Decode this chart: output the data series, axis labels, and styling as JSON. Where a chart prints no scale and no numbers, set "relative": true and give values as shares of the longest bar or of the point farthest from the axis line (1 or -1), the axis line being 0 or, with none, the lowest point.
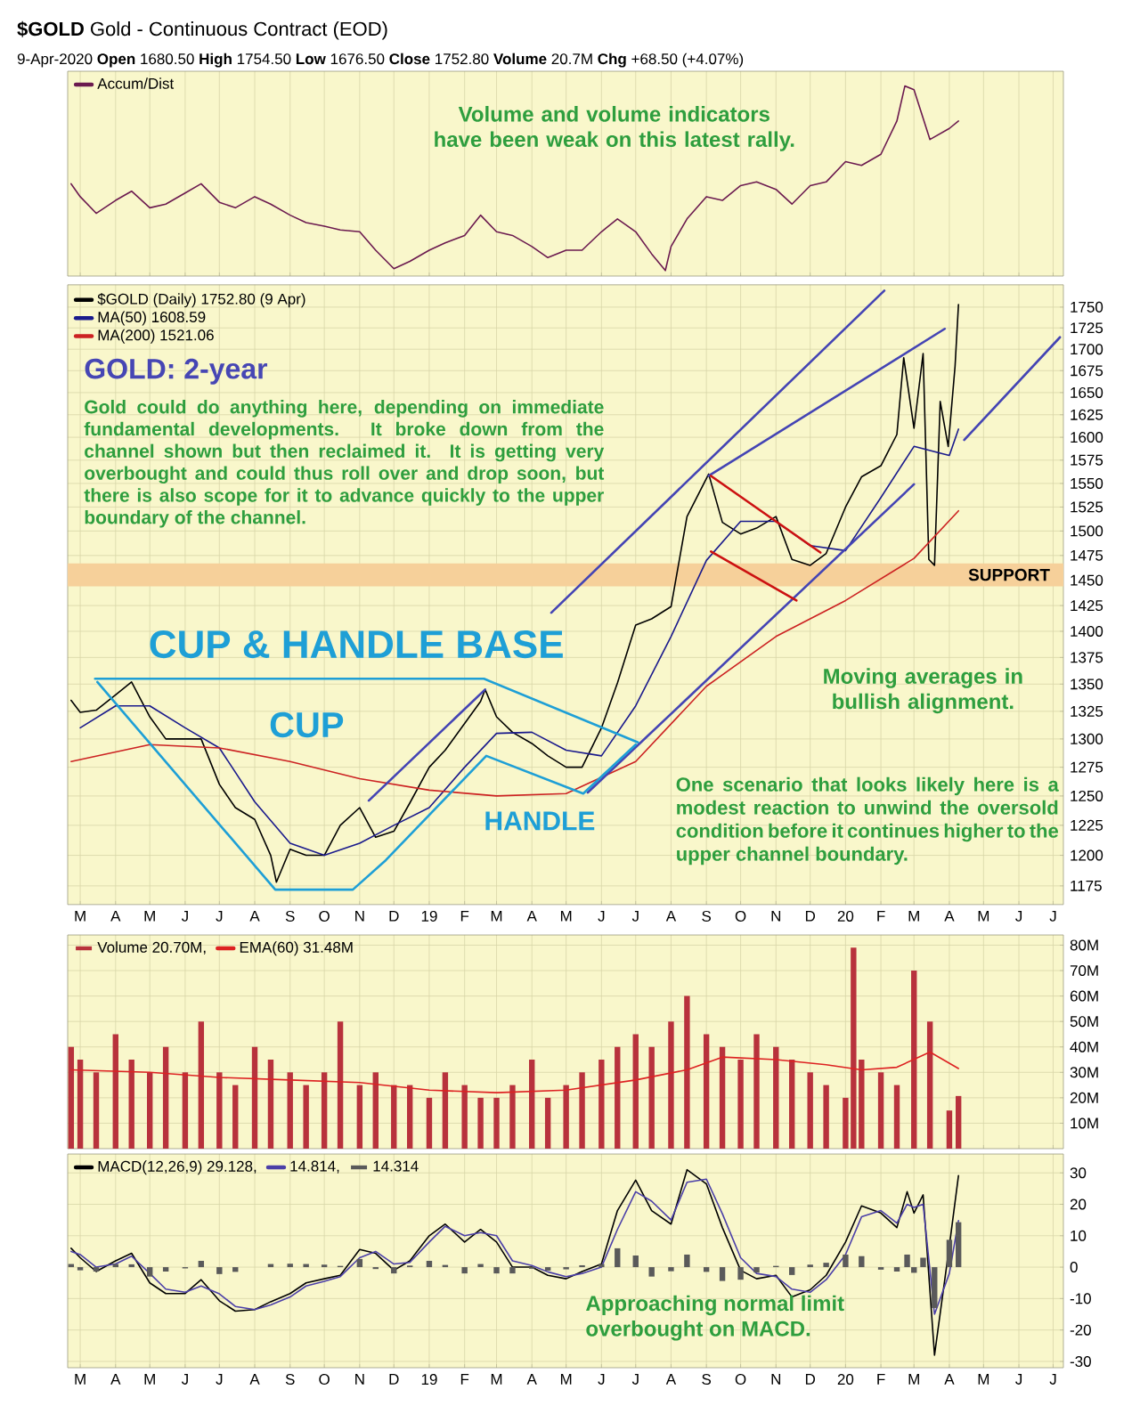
{
  "chart_data": [
    {
      "type": "line",
      "title": "**$GOLD** Gold - Continuous Contract (EOD)",
      "subtitle": "9-Apr-2020 **Open** 1680.50 **High** 1754.50 **Low** 1676.50 **Close** 1752.80 **Volume** 20.7M **Chg** +68.50 (+4.07%)",
      "relative": true,
      "tick_labels": false,
      "grid": "x",
      "legend": "top left",
      "xlim": [
        "2018-02-18",
        "2020-07-10"
      ],
      "xticks": [
        {
          "value": "2018-03-01",
          "label": null
        },
        {
          "value": "2018-04-01",
          "label": null
        },
        {
          "value": "2018-05-01",
          "label": null
        },
        {
          "value": "2018-06-01",
          "label": null
        },
        {
          "value": "2018-07-01",
          "label": null
        },
        {
          "value": "2018-08-01",
          "label": null
        },
        {
          "value": "2018-09-01",
          "label": null
        },
        {
          "value": "2018-10-01",
          "label": null
        },
        {
          "value": "2018-11-01",
          "label": null
        },
        {
          "value": "2018-12-01",
          "label": null
        },
        {
          "value": "2019-01-01",
          "label": null
        },
        {
          "value": "2019-02-01",
          "label": null
        },
        {
          "value": "2019-03-01",
          "label": null
        },
        {
          "value": "2019-04-01",
          "label": null
        },
        {
          "value": "2019-05-01",
          "label": null
        },
        {
          "value": "2019-06-01",
          "label": null
        },
        {
          "value": "2019-07-01",
          "label": null
        },
        {
          "value": "2019-08-01",
          "label": null
        },
        {
          "value": "2019-09-01",
          "label": null
        },
        {
          "value": "2019-10-01",
          "label": null
        },
        {
          "value": "2019-11-01",
          "label": null
        },
        {
          "value": "2019-12-01",
          "label": null
        },
        {
          "value": "2020-01-01",
          "label": null
        },
        {
          "value": "2020-02-01",
          "label": null
        },
        {
          "value": "2020-03-01",
          "label": null
        },
        {
          "value": "2020-04-01",
          "label": null
        },
        {
          "value": "2020-05-01",
          "label": null
        },
        {
          "value": "2020-06-01",
          "label": null
        },
        {
          "value": "2020-07-01",
          "label": null
        }
      ],
      "series": [
        {
          "name": "Accum/Dist",
          "color": "#6b1a4f",
          "x": [
            "2018-02-21",
            "2018-03-01",
            "2018-03-15",
            "2018-04-01",
            "2018-04-15",
            "2018-05-01",
            "2018-05-15",
            "2018-06-01",
            "2018-06-15",
            "2018-07-01",
            "2018-07-15",
            "2018-08-01",
            "2018-08-15",
            "2018-09-01",
            "2018-09-15",
            "2018-10-01",
            "2018-10-15",
            "2018-11-01",
            "2018-11-15",
            "2018-12-01",
            "2018-12-15",
            "2019-01-01",
            "2019-01-15",
            "2019-02-01",
            "2019-02-15",
            "2019-03-01",
            "2019-03-15",
            "2019-04-01",
            "2019-04-15",
            "2019-05-01",
            "2019-05-15",
            "2019-06-01",
            "2019-06-15",
            "2019-07-01",
            "2019-07-15",
            "2019-07-27",
            "2019-08-01",
            "2019-08-15",
            "2019-09-01",
            "2019-09-15",
            "2019-10-01",
            "2019-10-15",
            "2019-11-01",
            "2019-11-15",
            "2019-12-01",
            "2019-12-15",
            "2020-01-01",
            "2020-01-15",
            "2020-02-01",
            "2020-02-15",
            "2020-02-22",
            "2020-03-01",
            "2020-03-15",
            "2020-04-01",
            "2020-04-09"
          ],
          "values": [
            0.47,
            0.4,
            0.31,
            0.38,
            0.43,
            0.34,
            0.36,
            0.42,
            0.47,
            0.37,
            0.34,
            0.4,
            0.36,
            0.3,
            0.26,
            0.24,
            0.22,
            0.21,
            0.11,
            0.01,
            0.05,
            0.11,
            0.15,
            0.19,
            0.3,
            0.21,
            0.19,
            0.13,
            0.07,
            0.11,
            0.11,
            0.21,
            0.28,
            0.21,
            0.09,
            0,
            0.13,
            0.28,
            0.4,
            0.38,
            0.46,
            0.48,
            0.44,
            0.36,
            0.46,
            0.48,
            0.59,
            0.57,
            0.63,
            0.81,
            1,
            0.98,
            0.71,
            0.77,
            0.81
          ]
        }
      ],
      "annotations": [
        "Volume and volume indicators have been weak on this latest rally."
      ]
    },
    {
      "type": "line",
      "log": "y",
      "grid": true,
      "legend": "top left",
      "xlim": [
        "2018-02-18",
        "2020-07-10"
      ],
      "xticks": [
        {
          "value": "2018-03-01",
          "label": "M"
        },
        {
          "value": "2018-04-01",
          "label": "A"
        },
        {
          "value": "2018-05-01",
          "label": "M"
        },
        {
          "value": "2018-06-01",
          "label": "J"
        },
        {
          "value": "2018-07-01",
          "label": "J"
        },
        {
          "value": "2018-08-01",
          "label": "A"
        },
        {
          "value": "2018-09-01",
          "label": "S"
        },
        {
          "value": "2018-10-01",
          "label": "O"
        },
        {
          "value": "2018-11-01",
          "label": "N"
        },
        {
          "value": "2018-12-01",
          "label": "D"
        },
        {
          "value": "2019-01-01",
          "label": "19"
        },
        {
          "value": "2019-02-01",
          "label": "F"
        },
        {
          "value": "2019-03-01",
          "label": "M"
        },
        {
          "value": "2019-04-01",
          "label": "A"
        },
        {
          "value": "2019-05-01",
          "label": "M"
        },
        {
          "value": "2019-06-01",
          "label": "J"
        },
        {
          "value": "2019-07-01",
          "label": "J"
        },
        {
          "value": "2019-08-01",
          "label": "A"
        },
        {
          "value": "2019-09-01",
          "label": "S"
        },
        {
          "value": "2019-10-01",
          "label": "O"
        },
        {
          "value": "2019-11-01",
          "label": "N"
        },
        {
          "value": "2019-12-01",
          "label": "D"
        },
        {
          "value": "2020-01-01",
          "label": "20"
        },
        {
          "value": "2020-02-01",
          "label": "F"
        },
        {
          "value": "2020-03-01",
          "label": "M"
        },
        {
          "value": "2020-04-01",
          "label": "A"
        },
        {
          "value": "2020-05-01",
          "label": "M"
        },
        {
          "value": "2020-06-01",
          "label": "J"
        },
        {
          "value": "2020-07-01",
          "label": "J"
        }
      ],
      "ylim": [
        1160,
        1777
      ],
      "yticks": [
        1175,
        1200,
        1225,
        1250,
        1275,
        1300,
        1325,
        1350,
        1375,
        1400,
        1425,
        1450,
        1475,
        1500,
        1525,
        1550,
        1575,
        1600,
        1625,
        1650,
        1675,
        1700,
        1725,
        1750
      ],
      "bands": [
        {
          "axis": "y",
          "from": 1444,
          "to": 1467,
          "label": "SUPPORT",
          "color": "#f6d09a"
        }
      ],
      "series": [
        {
          "name": "$GOLD (Daily) 1752.80 (9 Apr)",
          "color": "#000000",
          "x": [
            "2018-02-21",
            "2018-03-01",
            "2018-03-15",
            "2018-04-01",
            "2018-04-15",
            "2018-05-01",
            "2018-05-15",
            "2018-06-01",
            "2018-06-15",
            "2018-07-01",
            "2018-07-15",
            "2018-08-01",
            "2018-08-15",
            "2018-08-20",
            "2018-09-01",
            "2018-09-15",
            "2018-10-01",
            "2018-10-15",
            "2018-11-01",
            "2018-11-15",
            "2018-12-01",
            "2018-12-15",
            "2019-01-01",
            "2019-01-15",
            "2019-02-01",
            "2019-02-15",
            "2019-02-19",
            "2019-03-01",
            "2019-03-15",
            "2019-04-01",
            "2019-04-15",
            "2019-05-01",
            "2019-05-15",
            "2019-06-01",
            "2019-06-15",
            "2019-07-01",
            "2019-07-15",
            "2019-08-01",
            "2019-08-15",
            "2019-09-03",
            "2019-09-15",
            "2019-10-01",
            "2019-10-15",
            "2019-11-01",
            "2019-11-15",
            "2019-12-01",
            "2019-12-15",
            "2020-01-01",
            "2020-01-15",
            "2020-02-01",
            "2020-02-15",
            "2020-02-21",
            "2020-03-01",
            "2020-03-09",
            "2020-03-14",
            "2020-03-19",
            "2020-03-24",
            "2020-03-31",
            "2020-04-06",
            "2020-04-09"
          ],
          "values": [
            1335,
            1324,
            1326,
            1340,
            1352,
            1320,
            1300,
            1300,
            1300,
            1260,
            1240,
            1230,
            1200,
            1178,
            1205,
            1200,
            1200,
            1225,
            1240,
            1215,
            1220,
            1244,
            1275,
            1290,
            1314,
            1334,
            1345,
            1320,
            1306,
            1296,
            1285,
            1275,
            1275,
            1310,
            1351,
            1406,
            1412,
            1424,
            1515,
            1560,
            1509,
            1497,
            1503,
            1515,
            1471,
            1465,
            1477,
            1525,
            1557,
            1569,
            1603,
            1690,
            1610,
            1695,
            1471,
            1465,
            1640,
            1590,
            1680,
            1753
          ]
        },
        {
          "name": "MA(50) 1608.59",
          "color": "#1a1a8c",
          "x": [
            "2018-03-01",
            "2018-04-01",
            "2018-05-01",
            "2018-06-01",
            "2018-07-01",
            "2018-08-01",
            "2018-09-01",
            "2018-10-01",
            "2018-11-01",
            "2018-12-01",
            "2019-01-01",
            "2019-02-01",
            "2019-03-01",
            "2019-04-01",
            "2019-05-01",
            "2019-06-01",
            "2019-07-01",
            "2019-08-01",
            "2019-09-01",
            "2019-10-01",
            "2019-11-01",
            "2019-12-01",
            "2020-01-01",
            "2020-02-01",
            "2020-03-01",
            "2020-04-01",
            "2020-04-09"
          ],
          "values": [
            1310,
            1330,
            1330,
            1310,
            1292,
            1245,
            1210,
            1200,
            1210,
            1225,
            1240,
            1275,
            1305,
            1306,
            1290,
            1285,
            1330,
            1395,
            1470,
            1510,
            1510,
            1485,
            1480,
            1535,
            1590,
            1580,
            1609
          ]
        },
        {
          "name": "MA(200) 1521.06",
          "color": "#cc2222",
          "x": [
            "2018-02-21",
            "2018-05-01",
            "2018-07-01",
            "2018-09-01",
            "2018-11-01",
            "2019-01-01",
            "2019-03-01",
            "2019-05-01",
            "2019-07-01",
            "2019-09-01",
            "2019-11-01",
            "2020-01-01",
            "2020-03-01",
            "2020-04-09"
          ],
          "values": [
            1280,
            1295,
            1292,
            1280,
            1265,
            1255,
            1250,
            1252,
            1280,
            1348,
            1395,
            1430,
            1472,
            1521
          ]
        },
        {
          "color": "#4444b4",
          "x": [
            "2019-04-18",
            "2020-02-04"
          ],
          "values": [
            1418,
            1770
          ]
        },
        {
          "color": "#4444b4",
          "x": [
            "2019-09-03",
            "2020-03-28"
          ],
          "values": [
            1558,
            1724
          ]
        },
        {
          "color": "#4444b4",
          "x": [
            "2019-05-20",
            "2020-03-01"
          ],
          "values": [
            1253,
            1549
          ]
        },
        {
          "color": "#4444b4",
          "x": [
            "2020-04-14",
            "2020-07-07"
          ],
          "values": [
            1597,
            1714
          ]
        },
        {
          "color": "#4444b4",
          "x": [
            "2018-11-09",
            "2019-02-19"
          ],
          "values": [
            1246,
            1345
          ]
        },
        {
          "color": "#cc1111",
          "x": [
            "2019-09-05",
            "2019-12-10"
          ],
          "values": [
            1558,
            1478
          ]
        },
        {
          "color": "#cc1111",
          "x": [
            "2019-09-05",
            "2019-11-19"
          ],
          "values": [
            1479,
            1430
          ]
        },
        {
          "color": "#1e9fd6",
          "x": [
            "2018-03-14",
            "2019-02-18",
            "2019-07-03"
          ],
          "values": [
            1355,
            1355,
            1297
          ]
        },
        {
          "color": "#1e9fd6",
          "x": [
            "2018-03-16",
            "2018-08-19",
            "2018-10-26",
            "2018-11-24",
            "2019-02-20",
            "2019-05-16",
            "2019-07-01"
          ],
          "values": [
            1352,
            1172,
            1172,
            1196,
            1285,
            1252,
            1295
          ]
        }
      ],
      "annotations": [
        "GOLD: 2-year",
        "Gold could do anything here, depending on immediate fundamental developments. It broke down from the channel shown but then reclaimed it. It is getting very overbought and could thus roll over and drop soon, but there is also scope for it to advance quickly to the upper boundary of the channel.",
        "CUP & HANDLE BASE",
        "CUP",
        "HANDLE",
        "Moving averages in bullish alignment.",
        "One scenario that looks likely here is a modest reaction to unwind the oversold condition before it continues higher to the upper channel boundary."
      ]
    },
    {
      "type": "bar",
      "tick_labels": "y",
      "grid": true,
      "legend": "top left",
      "xlim": [
        "2018-02-18",
        "2020-07-10"
      ],
      "xticks": [
        {
          "value": "2018-03-01",
          "label": null
        },
        {
          "value": "2018-04-01",
          "label": null
        },
        {
          "value": "2018-05-01",
          "label": null
        },
        {
          "value": "2018-06-01",
          "label": null
        },
        {
          "value": "2018-07-01",
          "label": null
        },
        {
          "value": "2018-08-01",
          "label": null
        },
        {
          "value": "2018-09-01",
          "label": null
        },
        {
          "value": "2018-10-01",
          "label": null
        },
        {
          "value": "2018-11-01",
          "label": null
        },
        {
          "value": "2018-12-01",
          "label": null
        },
        {
          "value": "2019-01-01",
          "label": null
        },
        {
          "value": "2019-02-01",
          "label": null
        },
        {
          "value": "2019-03-01",
          "label": null
        },
        {
          "value": "2019-04-01",
          "label": null
        },
        {
          "value": "2019-05-01",
          "label": null
        },
        {
          "value": "2019-06-01",
          "label": null
        },
        {
          "value": "2019-07-01",
          "label": null
        },
        {
          "value": "2019-08-01",
          "label": null
        },
        {
          "value": "2019-09-01",
          "label": null
        },
        {
          "value": "2019-10-01",
          "label": null
        },
        {
          "value": "2019-11-01",
          "label": null
        },
        {
          "value": "2019-12-01",
          "label": null
        },
        {
          "value": "2020-01-01",
          "label": null
        },
        {
          "value": "2020-02-01",
          "label": null
        },
        {
          "value": "2020-03-01",
          "label": null
        },
        {
          "value": "2020-04-01",
          "label": null
        },
        {
          "value": "2020-05-01",
          "label": null
        },
        {
          "value": "2020-06-01",
          "label": null
        },
        {
          "value": "2020-07-01",
          "label": null
        }
      ],
      "ylim": [
        0,
        84
      ],
      "yticks": [
        {
          "value": 10,
          "label": "10M"
        },
        {
          "value": 20,
          "label": "20M"
        },
        {
          "value": 30,
          "label": "30M"
        },
        {
          "value": 40,
          "label": "40M"
        },
        {
          "value": 50,
          "label": "50M"
        },
        {
          "value": 60,
          "label": "60M"
        },
        {
          "value": 70,
          "label": "70M"
        },
        {
          "value": 80,
          "label": "80M"
        }
      ],
      "series": [
        {
          "name": "Volume 20.70M,",
          "color": "#b8323c",
          "x": [
            "2018-02-21",
            "2018-03-01",
            "2018-03-15",
            "2018-04-01",
            "2018-04-15",
            "2018-05-01",
            "2018-05-15",
            "2018-06-01",
            "2018-06-15",
            "2018-07-01",
            "2018-07-15",
            "2018-08-01",
            "2018-08-15",
            "2018-09-01",
            "2018-09-15",
            "2018-10-01",
            "2018-10-15",
            "2018-11-01",
            "2018-11-15",
            "2018-12-01",
            "2018-12-15",
            "2019-01-01",
            "2019-01-15",
            "2019-02-01",
            "2019-02-15",
            "2019-03-01",
            "2019-03-15",
            "2019-04-01",
            "2019-04-15",
            "2019-05-01",
            "2019-05-15",
            "2019-06-01",
            "2019-06-15",
            "2019-07-01",
            "2019-07-15",
            "2019-08-01",
            "2019-08-15",
            "2019-09-01",
            "2019-09-15",
            "2019-10-01",
            "2019-10-15",
            "2019-11-01",
            "2019-11-15",
            "2019-12-01",
            "2019-12-15",
            "2020-01-01",
            "2020-01-08",
            "2020-01-15",
            "2020-02-01",
            "2020-02-15",
            "2020-03-01",
            "2020-03-15",
            "2020-04-01",
            "2020-04-09"
          ],
          "values": [
            40,
            35,
            30,
            45,
            35,
            30,
            40,
            30,
            50,
            30,
            25,
            40,
            35,
            30,
            25,
            30,
            50,
            25,
            30,
            25,
            25,
            20,
            30,
            25,
            20,
            20,
            25,
            35,
            20,
            25,
            30,
            35,
            40,
            45,
            40,
            50,
            60,
            45,
            40,
            35,
            45,
            40,
            35,
            30,
            25,
            20,
            79,
            35,
            30,
            25,
            70,
            50,
            15,
            20.7
          ]
        },
        {
          "name": "EMA(60) 31.48M",
          "type": "line",
          "color": "#dd2222",
          "x": [
            "2018-02-21",
            "2018-05-01",
            "2018-07-01",
            "2018-09-01",
            "2018-11-01",
            "2019-01-01",
            "2019-03-01",
            "2019-05-01",
            "2019-07-01",
            "2019-08-15",
            "2019-09-15",
            "2019-11-01",
            "2019-12-15",
            "2020-01-15",
            "2020-02-15",
            "2020-03-15",
            "2020-04-09"
          ],
          "values": [
            31,
            30,
            28,
            27,
            26,
            23,
            22,
            23,
            27,
            31,
            36,
            35,
            33,
            31,
            32,
            38,
            31.5
          ]
        }
      ]
    },
    {
      "type": "line",
      "grid": true,
      "legend": "top left",
      "xlim": [
        "2018-02-18",
        "2020-07-10"
      ],
      "xticks": [
        {
          "value": "2018-03-01",
          "label": "M"
        },
        {
          "value": "2018-04-01",
          "label": "A"
        },
        {
          "value": "2018-05-01",
          "label": "M"
        },
        {
          "value": "2018-06-01",
          "label": "J"
        },
        {
          "value": "2018-07-01",
          "label": "J"
        },
        {
          "value": "2018-08-01",
          "label": "A"
        },
        {
          "value": "2018-09-01",
          "label": "S"
        },
        {
          "value": "2018-10-01",
          "label": "O"
        },
        {
          "value": "2018-11-01",
          "label": "N"
        },
        {
          "value": "2018-12-01",
          "label": "D"
        },
        {
          "value": "2019-01-01",
          "label": "19"
        },
        {
          "value": "2019-02-01",
          "label": "F"
        },
        {
          "value": "2019-03-01",
          "label": "M"
        },
        {
          "value": "2019-04-01",
          "label": "A"
        },
        {
          "value": "2019-05-01",
          "label": "M"
        },
        {
          "value": "2019-06-01",
          "label": "J"
        },
        {
          "value": "2019-07-01",
          "label": "J"
        },
        {
          "value": "2019-08-01",
          "label": "A"
        },
        {
          "value": "2019-09-01",
          "label": "S"
        },
        {
          "value": "2019-10-01",
          "label": "O"
        },
        {
          "value": "2019-11-01",
          "label": "N"
        },
        {
          "value": "2019-12-01",
          "label": "D"
        },
        {
          "value": "2020-01-01",
          "label": "20"
        },
        {
          "value": "2020-02-01",
          "label": "F"
        },
        {
          "value": "2020-03-01",
          "label": "M"
        },
        {
          "value": "2020-04-01",
          "label": "A"
        },
        {
          "value": "2020-05-01",
          "label": "M"
        },
        {
          "value": "2020-06-01",
          "label": "J"
        },
        {
          "value": "2020-07-01",
          "label": "J"
        }
      ],
      "ylim": [
        -32,
        36
      ],
      "yticks": [
        -30,
        -20,
        -10,
        0,
        10,
        20,
        30
      ],
      "x": [
        "2018-02-21",
        "2018-03-01",
        "2018-03-15",
        "2018-04-01",
        "2018-04-15",
        "2018-05-01",
        "2018-05-15",
        "2018-06-01",
        "2018-06-15",
        "2018-07-01",
        "2018-07-15",
        "2018-08-01",
        "2018-08-15",
        "2018-09-01",
        "2018-09-15",
        "2018-10-01",
        "2018-10-15",
        "2018-11-01",
        "2018-11-15",
        "2018-12-01",
        "2018-12-15",
        "2019-01-01",
        "2019-01-15",
        "2019-02-01",
        "2019-02-15",
        "2019-03-01",
        "2019-03-15",
        "2019-04-01",
        "2019-04-15",
        "2019-05-01",
        "2019-05-15",
        "2019-06-01",
        "2019-06-15",
        "2019-07-01",
        "2019-07-15",
        "2019-08-01",
        "2019-08-15",
        "2019-09-01",
        "2019-09-15",
        "2019-10-01",
        "2019-10-15",
        "2019-11-01",
        "2019-11-15",
        "2019-12-01",
        "2019-12-15",
        "2020-01-01",
        "2020-01-15",
        "2020-02-01",
        "2020-02-15",
        "2020-02-24",
        "2020-03-01",
        "2020-03-09",
        "2020-03-19",
        "2020-04-01",
        "2020-04-09"
      ],
      "series": [
        {
          "name": "MACD(12,26,9) 29.128,",
          "color": "#000000",
          "values": [
            6,
            3,
            -1.4,
            2,
            4.4,
            -5,
            -8.4,
            -8.4,
            -4,
            -10.7,
            -14,
            -13.5,
            -11,
            -8.4,
            -5,
            -3.7,
            -2.6,
            5.6,
            4.4,
            -1,
            2,
            10,
            13.7,
            8,
            12,
            8,
            0,
            0,
            -2.6,
            -3.7,
            -1.4,
            1,
            18,
            27.7,
            18,
            13.7,
            31,
            26.5,
            12.6,
            -1,
            -3.7,
            -2.6,
            -9.5,
            -7.2,
            -2.6,
            8,
            19.5,
            17.2,
            12.6,
            24,
            17.2,
            23,
            -28,
            6.7,
            29.1
          ]
        },
        {
          "name": "14.814,",
          "color": "#4b3fa8",
          "values": [
            5,
            4,
            0,
            1,
            3.5,
            -2,
            -7,
            -8,
            -6,
            -8.5,
            -12.5,
            -13.5,
            -12,
            -9.5,
            -6,
            -4.5,
            -3,
            3,
            5,
            1,
            1.5,
            8,
            13,
            10,
            11,
            10,
            2,
            0.5,
            -1.5,
            -3,
            -2,
            0,
            12,
            24,
            21,
            15,
            27,
            28,
            17,
            3,
            -2,
            -3,
            -7,
            -8,
            -4,
            4,
            16,
            18,
            14,
            20,
            19,
            20,
            -15,
            -2,
            14.8
          ]
        },
        {
          "name": "14.314",
          "type": "bar",
          "color": "#5a5a5a",
          "values": [
            1,
            -1,
            -1.4,
            1,
            0.9,
            -3,
            -1.4,
            -0.4,
            2,
            -2.2,
            -1.5,
            0,
            1,
            1.1,
            1,
            0.8,
            0.4,
            2.6,
            -0.6,
            -2,
            0.5,
            2,
            0.7,
            -2,
            1,
            -2,
            -2,
            -0.5,
            -1.1,
            -0.7,
            0.6,
            1,
            6,
            3.7,
            -3,
            -1.3,
            4,
            -1.5,
            -4.4,
            -4,
            -1.7,
            0.4,
            -2.5,
            0.8,
            1.4,
            4,
            3.5,
            -0.8,
            -1.4,
            4,
            -1.8,
            3,
            -13,
            8.7,
            14.3
          ]
        }
      ],
      "annotations": [
        "Approaching normal limit overbought on MACD."
      ]
    }
  ]
}
